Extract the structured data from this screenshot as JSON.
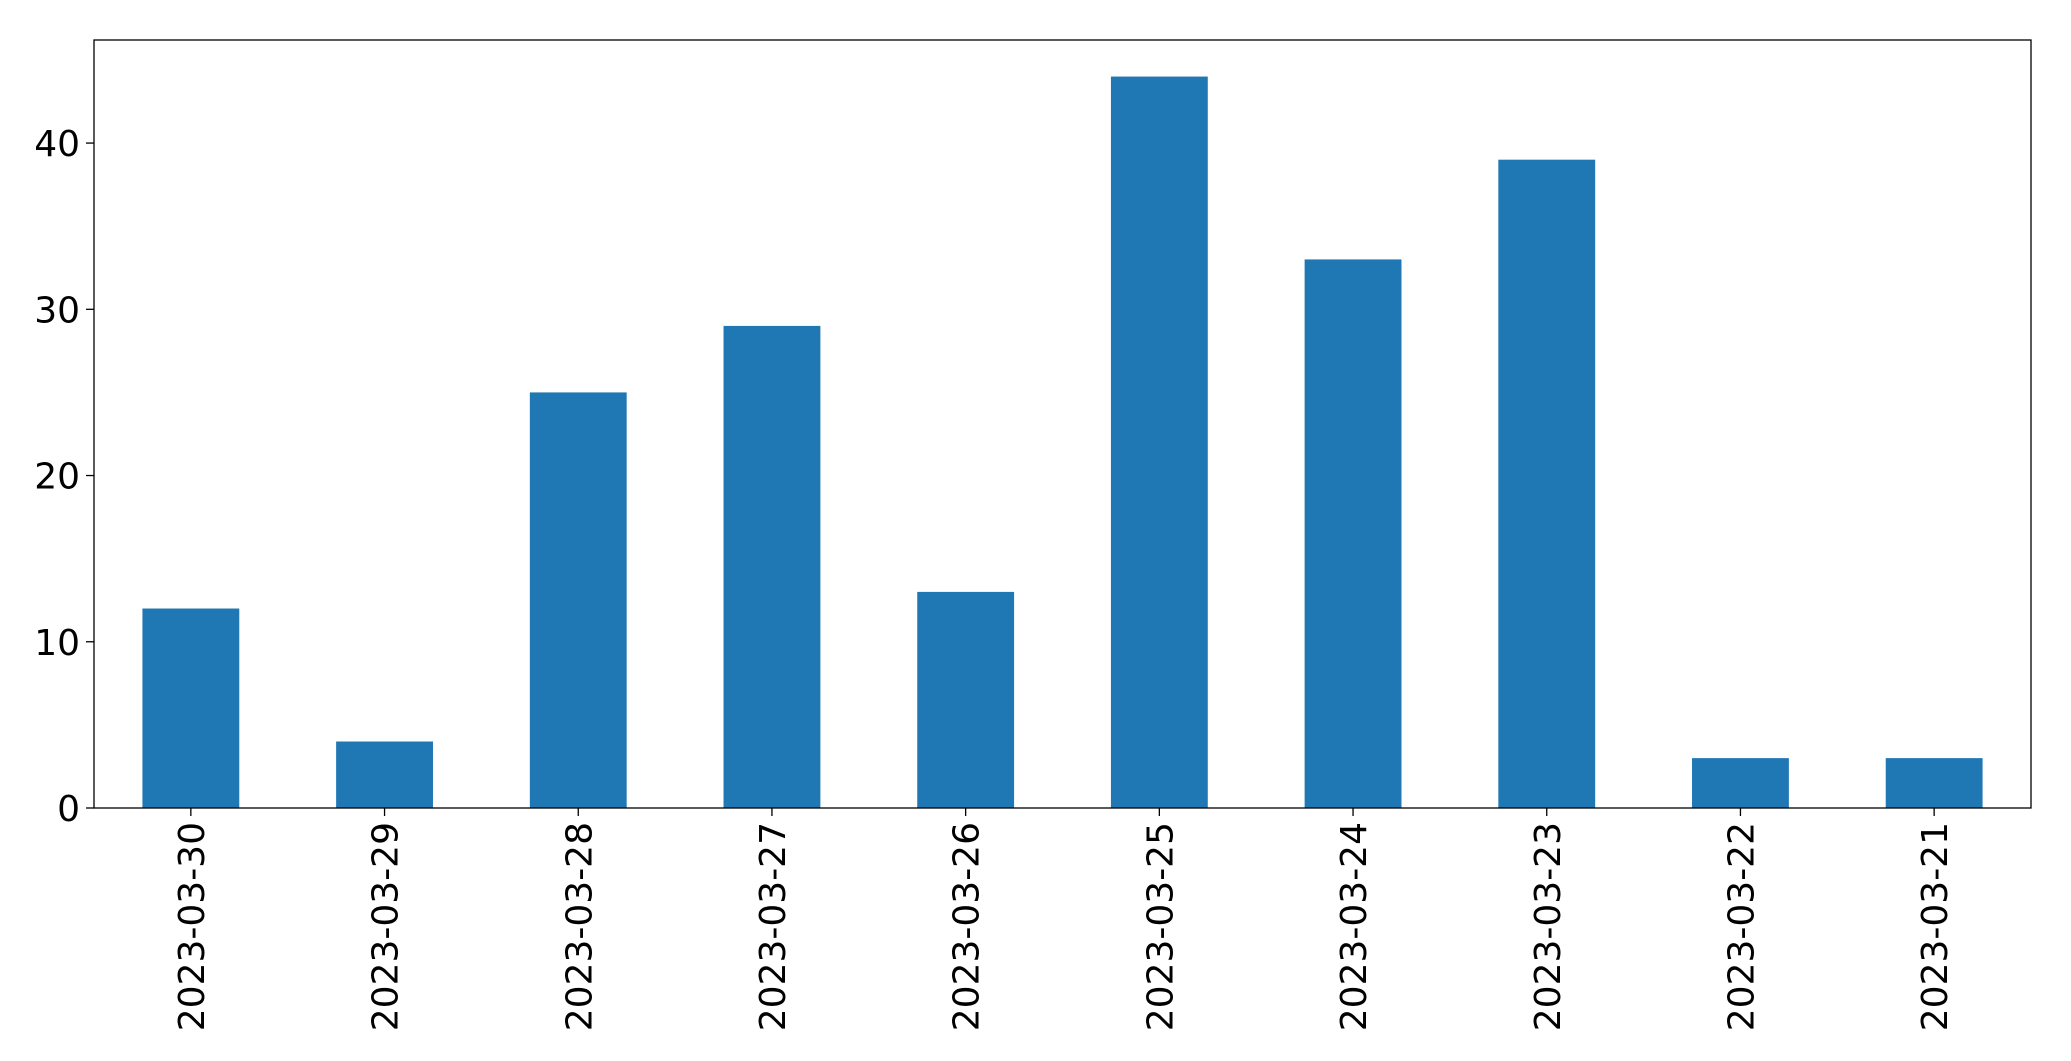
{
  "chart_data": {
    "type": "bar",
    "categories": [
      "2023-03-30",
      "2023-03-29",
      "2023-03-28",
      "2023-03-27",
      "2023-03-26",
      "2023-03-25",
      "2023-03-24",
      "2023-03-23",
      "2023-03-22",
      "2023-03-21"
    ],
    "values": [
      12,
      4,
      25,
      29,
      13,
      44,
      33,
      39,
      3,
      3
    ],
    "color": "#1f77b4",
    "ylim": [
      0,
      46.2
    ],
    "yticks": [
      0,
      10,
      20,
      30,
      40
    ],
    "grid": false
  }
}
